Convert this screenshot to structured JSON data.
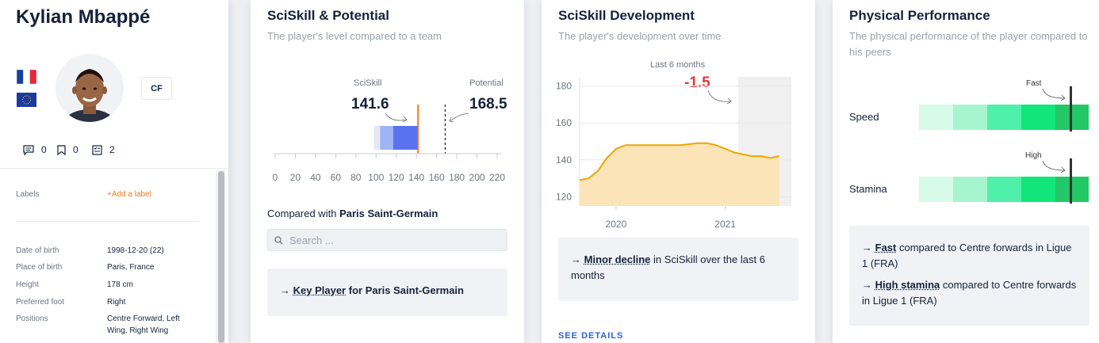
{
  "profile": {
    "name": "Kylian Mbappé",
    "position_badge": "CF",
    "stats": {
      "comments": "0",
      "bookmarks": "0",
      "reports": "2"
    },
    "labels_label": "Labels",
    "add_label": "+Add a label",
    "info": [
      {
        "label": "Date of birth",
        "value": "1998-12-20 (22)"
      },
      {
        "label": "Place of birth",
        "value": "Paris, France"
      },
      {
        "label": "Height",
        "value": "178 cm"
      },
      {
        "label": "Preferred foot",
        "value": "Right"
      },
      {
        "label": "Positions",
        "value": "Centre Forward, Left Wing, Right Wing"
      }
    ]
  },
  "sciskill": {
    "title": "SciSkill & Potential",
    "subtitle": "The player's level compared to a team",
    "sciskill_label": "SciSkill",
    "sciskill_value": "141.6",
    "potential_label": "Potential",
    "potential_value": "168.5",
    "axis_ticks": [
      "0",
      "20",
      "40",
      "60",
      "80",
      "100",
      "120",
      "140",
      "160",
      "180",
      "200",
      "220"
    ],
    "compared_prefix": "Compared with",
    "compared_team": "Paris Saint-Germain",
    "search_placeholder": "Search ...",
    "key_role": "Key Player",
    "key_for": "for",
    "key_team": "Paris Saint-Germain",
    "colors": {
      "bar": "#5b72f0",
      "sciskill_line": "#f07a1a"
    }
  },
  "development": {
    "title": "SciSkill Development",
    "subtitle": "The player's development over time",
    "period_label": "Last 6 months",
    "change": "-1.5",
    "y_ticks": [
      "180",
      "160",
      "140",
      "120"
    ],
    "x_ticks": [
      "2020",
      "2021"
    ],
    "summary_strong": "Minor decline",
    "summary_rest": "in SciSkill over the last 6 months",
    "see_details": "SEE DETAILS",
    "colors": {
      "line": "#f0a500",
      "fill": "#fbe5b8"
    }
  },
  "physical": {
    "title": "Physical Performance",
    "subtitle": "The physical performance of the player compared to his peers",
    "rows": [
      {
        "label": "Speed",
        "annotation": "Fast"
      },
      {
        "label": "Stamina",
        "annotation": "High"
      }
    ],
    "note1_strong": "Fast",
    "note1_rest": "compared to Centre forwards in Ligue 1 (FRA)",
    "note2_strong": "High stamina",
    "note2_rest": "compared to Centre forwards in Ligue 1 (FRA)",
    "colors": [
      "#d6fbe8",
      "#a6f5cf",
      "#4ff0aa",
      "#12e57a",
      "#22c866"
    ]
  },
  "chart_data": [
    {
      "type": "bar",
      "title": "SciSkill & Potential",
      "categories": [
        "SciSkill",
        "Potential"
      ],
      "values": [
        141.6,
        168.5
      ],
      "xlim": [
        0,
        220
      ]
    },
    {
      "type": "line",
      "title": "SciSkill Development",
      "x": [
        "2019-09",
        "2019-10",
        "2019-11",
        "2019-12",
        "2020-01",
        "2020-02",
        "2020-04",
        "2020-06",
        "2020-08",
        "2020-10",
        "2020-11",
        "2020-12",
        "2021-01",
        "2021-02",
        "2021-03",
        "2021-04",
        "2021-05",
        "2021-06",
        "2021-07"
      ],
      "values": [
        129,
        130,
        134,
        141,
        146,
        148,
        148,
        148,
        148,
        149,
        149,
        148,
        146,
        144,
        143,
        142,
        142,
        141,
        142
      ],
      "ylim": [
        115,
        185
      ]
    }
  ]
}
